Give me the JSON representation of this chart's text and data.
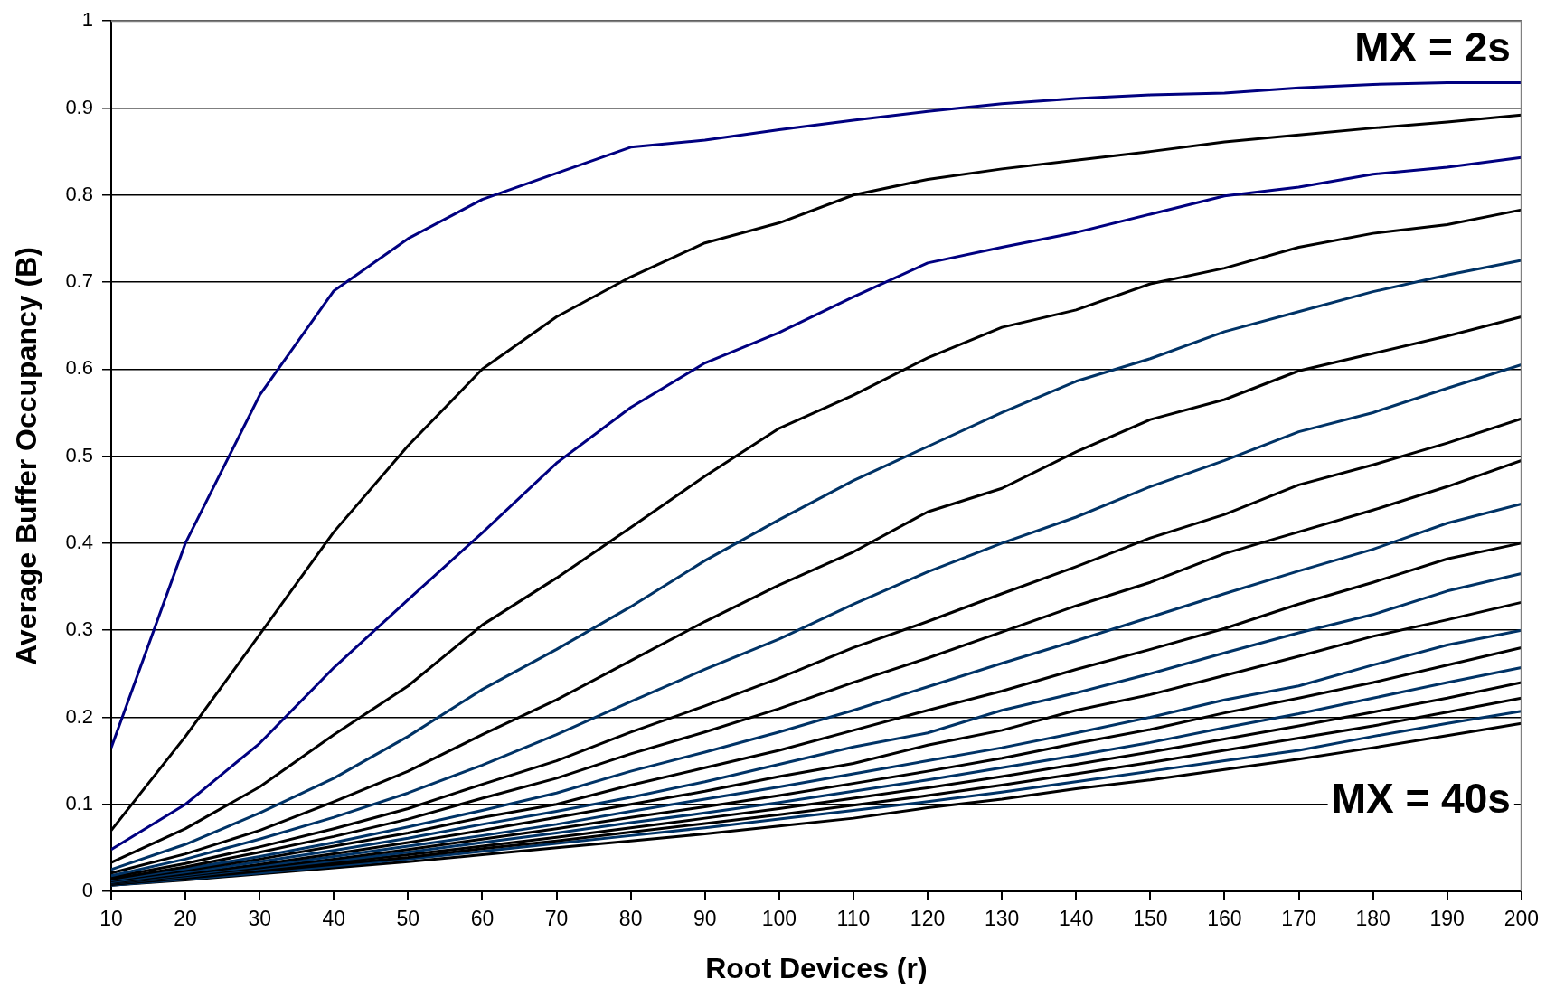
{
  "chart_data": {
    "type": "line",
    "xlabel": "Root Devices (r)",
    "ylabel": "Average Buffer Occupancy (B)",
    "annotations": [
      "MX = 2s",
      "MX = 40s"
    ],
    "x": [
      10,
      20,
      30,
      40,
      50,
      60,
      70,
      80,
      90,
      100,
      110,
      120,
      130,
      140,
      150,
      160,
      170,
      180,
      190,
      200
    ],
    "xlim": [
      10,
      200
    ],
    "xticks": [
      10,
      20,
      30,
      40,
      50,
      60,
      70,
      80,
      90,
      100,
      110,
      120,
      130,
      140,
      150,
      160,
      170,
      180,
      190,
      200
    ],
    "ylim": [
      0,
      1
    ],
    "yticks": [
      0,
      0.1,
      0.2,
      0.3,
      0.4,
      0.5,
      0.6,
      0.7,
      0.8,
      0.9,
      1
    ],
    "grid": "y",
    "legend": false,
    "marker": "none",
    "line_style": "solid",
    "series": [
      {
        "color": "#000080",
        "values": [
          0.165,
          0.4,
          0.57,
          0.69,
          0.75,
          0.795,
          0.825,
          0.855,
          0.863,
          0.875,
          0.886,
          0.896,
          0.905,
          0.911,
          0.915,
          0.917,
          0.923,
          0.927,
          0.929,
          0.929
        ]
      },
      {
        "color": "#000000",
        "values": [
          0.07,
          0.178,
          0.295,
          0.413,
          0.512,
          0.6,
          0.66,
          0.706,
          0.745,
          0.768,
          0.8,
          0.818,
          0.83,
          0.84,
          0.85,
          0.861,
          0.869,
          0.877,
          0.884,
          0.892
        ]
      },
      {
        "color": "#000080",
        "values": [
          0.048,
          0.1,
          0.17,
          0.257,
          0.335,
          0.412,
          0.492,
          0.556,
          0.607,
          0.642,
          0.683,
          0.722,
          0.74,
          0.757,
          0.778,
          0.799,
          0.809,
          0.824,
          0.832,
          0.843
        ]
      },
      {
        "color": "#000000",
        "values": [
          0.033,
          0.072,
          0.12,
          0.18,
          0.236,
          0.306,
          0.36,
          0.418,
          0.477,
          0.532,
          0.57,
          0.613,
          0.648,
          0.668,
          0.698,
          0.716,
          0.74,
          0.756,
          0.766,
          0.783
        ]
      },
      {
        "color": "#003366",
        "values": [
          0.025,
          0.054,
          0.09,
          0.13,
          0.178,
          0.232,
          0.278,
          0.327,
          0.38,
          0.427,
          0.472,
          0.511,
          0.55,
          0.586,
          0.612,
          0.643,
          0.666,
          0.689,
          0.708,
          0.725
        ]
      },
      {
        "color": "#000000",
        "values": [
          0.021,
          0.043,
          0.07,
          0.103,
          0.138,
          0.18,
          0.22,
          0.265,
          0.31,
          0.352,
          0.39,
          0.436,
          0.463,
          0.505,
          0.542,
          0.565,
          0.598,
          0.618,
          0.638,
          0.66
        ]
      },
      {
        "color": "#003366",
        "values": [
          0.018,
          0.037,
          0.06,
          0.085,
          0.113,
          0.145,
          0.18,
          0.218,
          0.255,
          0.29,
          0.33,
          0.367,
          0.4,
          0.43,
          0.465,
          0.495,
          0.528,
          0.55,
          0.578,
          0.605
        ]
      },
      {
        "color": "#000000",
        "values": [
          0.016,
          0.032,
          0.051,
          0.072,
          0.095,
          0.123,
          0.15,
          0.183,
          0.213,
          0.245,
          0.28,
          0.31,
          0.342,
          0.373,
          0.406,
          0.433,
          0.467,
          0.49,
          0.515,
          0.543
        ]
      },
      {
        "color": "#000000",
        "values": [
          0.014,
          0.028,
          0.045,
          0.063,
          0.083,
          0.107,
          0.13,
          0.158,
          0.183,
          0.21,
          0.24,
          0.268,
          0.298,
          0.328,
          0.355,
          0.388,
          0.413,
          0.438,
          0.465,
          0.495
        ]
      },
      {
        "color": "#003366",
        "values": [
          0.013,
          0.026,
          0.04,
          0.056,
          0.074,
          0.093,
          0.113,
          0.138,
          0.16,
          0.183,
          0.208,
          0.235,
          0.262,
          0.288,
          0.315,
          0.342,
          0.368,
          0.393,
          0.423,
          0.445
        ]
      },
      {
        "color": "#000000",
        "values": [
          0.012,
          0.024,
          0.037,
          0.052,
          0.067,
          0.085,
          0.1,
          0.122,
          0.142,
          0.162,
          0.185,
          0.208,
          0.23,
          0.255,
          0.278,
          0.302,
          0.33,
          0.355,
          0.382,
          0.4
        ]
      },
      {
        "color": "#003366",
        "values": [
          0.011,
          0.022,
          0.034,
          0.047,
          0.061,
          0.077,
          0.092,
          0.108,
          0.126,
          0.146,
          0.166,
          0.182,
          0.208,
          0.228,
          0.25,
          0.274,
          0.297,
          0.318,
          0.345,
          0.365
        ]
      },
      {
        "color": "#000000",
        "values": [
          0.01,
          0.02,
          0.031,
          0.043,
          0.056,
          0.07,
          0.085,
          0.1,
          0.115,
          0.132,
          0.147,
          0.168,
          0.185,
          0.208,
          0.226,
          0.248,
          0.27,
          0.293,
          0.312,
          0.332
        ]
      },
      {
        "color": "#003366",
        "values": [
          0.01,
          0.019,
          0.029,
          0.04,
          0.052,
          0.064,
          0.077,
          0.092,
          0.106,
          0.12,
          0.135,
          0.15,
          0.165,
          0.182,
          0.2,
          0.22,
          0.236,
          0.26,
          0.283,
          0.3
        ]
      },
      {
        "color": "#000000",
        "values": [
          0.009,
          0.018,
          0.027,
          0.037,
          0.048,
          0.06,
          0.072,
          0.085,
          0.097,
          0.11,
          0.124,
          0.138,
          0.153,
          0.17,
          0.186,
          0.205,
          0.222,
          0.24,
          0.26,
          0.28
        ]
      },
      {
        "color": "#003366",
        "values": [
          0.009,
          0.017,
          0.026,
          0.035,
          0.045,
          0.056,
          0.067,
          0.079,
          0.09,
          0.102,
          0.115,
          0.128,
          0.142,
          0.156,
          0.171,
          0.188,
          0.204,
          0.222,
          0.24,
          0.257
        ]
      },
      {
        "color": "#000000",
        "values": [
          0.008,
          0.016,
          0.024,
          0.033,
          0.042,
          0.052,
          0.062,
          0.073,
          0.084,
          0.095,
          0.107,
          0.119,
          0.132,
          0.146,
          0.16,
          0.175,
          0.19,
          0.206,
          0.222,
          0.24
        ]
      },
      {
        "color": "#000000",
        "values": [
          0.008,
          0.015,
          0.023,
          0.031,
          0.039,
          0.049,
          0.058,
          0.068,
          0.078,
          0.088,
          0.099,
          0.11,
          0.122,
          0.135,
          0.148,
          0.162,
          0.176,
          0.19,
          0.206,
          0.222
        ]
      },
      {
        "color": "#003366",
        "values": [
          0.007,
          0.014,
          0.021,
          0.029,
          0.037,
          0.046,
          0.055,
          0.064,
          0.073,
          0.083,
          0.093,
          0.103,
          0.114,
          0.126,
          0.138,
          0.15,
          0.162,
          0.178,
          0.193,
          0.207
        ]
      },
      {
        "color": "#000000",
        "values": [
          0.007,
          0.013,
          0.02,
          0.027,
          0.034,
          0.042,
          0.05,
          0.058,
          0.066,
          0.075,
          0.084,
          0.096,
          0.106,
          0.118,
          0.128,
          0.14,
          0.152,
          0.165,
          0.179,
          0.193
        ]
      }
    ]
  }
}
